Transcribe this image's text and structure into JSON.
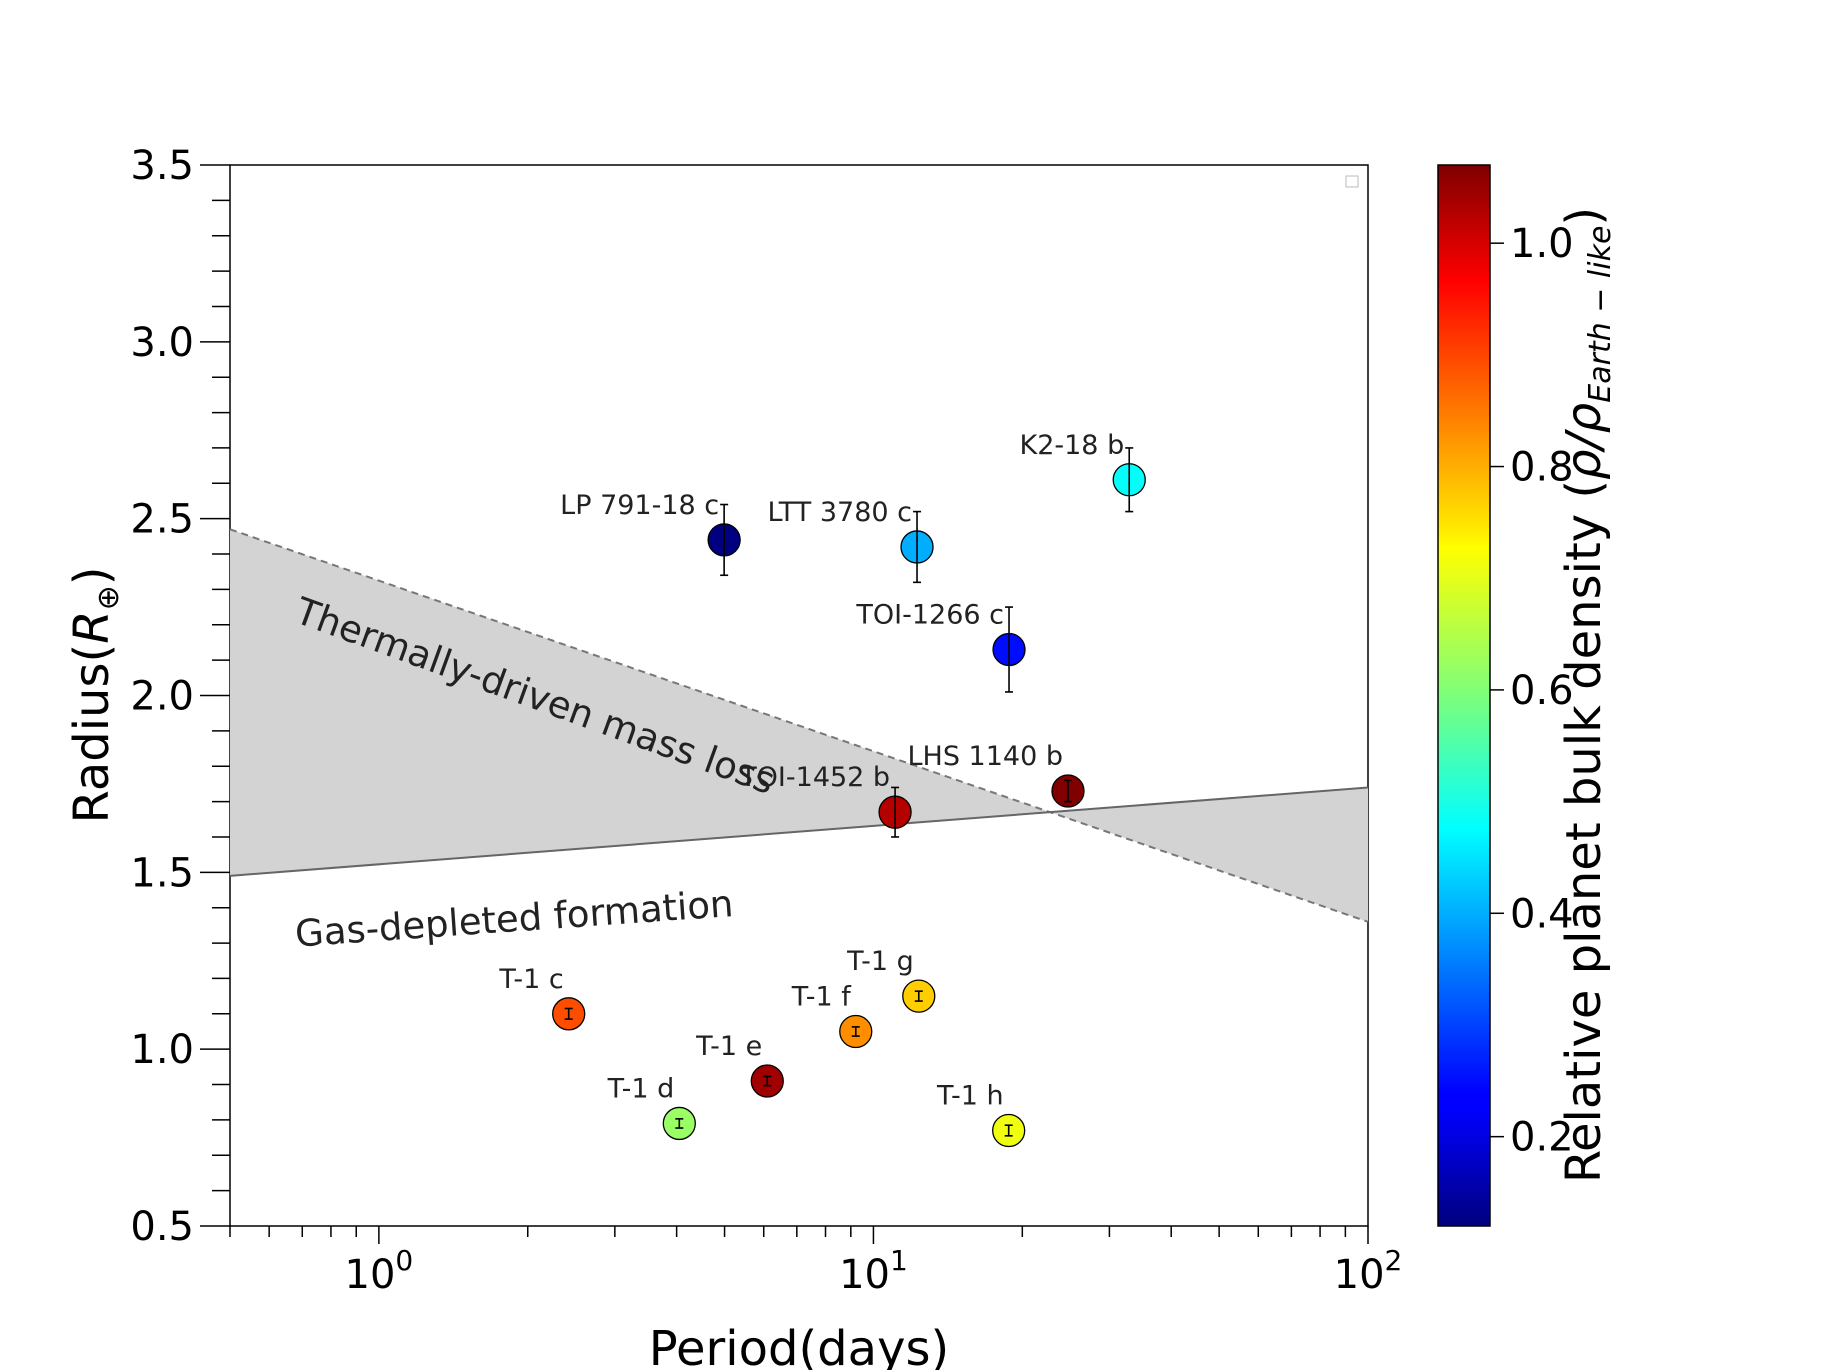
{
  "chart_data": {
    "type": "scatter",
    "xlabel": "Period(days)",
    "ylabel_prefix": "Radius(",
    "ylabel_symbol": "R",
    "ylabel_sub": "⊕",
    "ylabel_suffix": ")",
    "x_scale": "log",
    "xlim": [
      0.5,
      100
    ],
    "ylim": [
      0.5,
      3.5
    ],
    "x_ticks": [
      {
        "value": 1,
        "base": "10",
        "exp": "0"
      },
      {
        "value": 10,
        "base": "10",
        "exp": "1"
      },
      {
        "value": 100,
        "base": "10",
        "exp": "2"
      }
    ],
    "y_ticks": [
      {
        "value": 0.5,
        "label": "0.5"
      },
      {
        "value": 1.0,
        "label": "1.0"
      },
      {
        "value": 1.5,
        "label": "1.5"
      },
      {
        "value": 2.0,
        "label": "2.0"
      },
      {
        "value": 2.5,
        "label": "2.5"
      },
      {
        "value": 3.0,
        "label": "3.0"
      },
      {
        "value": 3.5,
        "label": "3.5"
      }
    ],
    "grid": false,
    "points": [
      {
        "label": "LP 791-18 c",
        "period": 4.99,
        "radius": 2.44,
        "err": 0.1,
        "density": 0.12
      },
      {
        "label": "LTT 3780 c",
        "period": 12.25,
        "radius": 2.42,
        "err": 0.1,
        "density": 0.4
      },
      {
        "label": "K2-18 b",
        "period": 32.9,
        "radius": 2.61,
        "err": 0.09,
        "density": 0.48
      },
      {
        "label": "TOI-1266 c",
        "period": 18.8,
        "radius": 2.13,
        "err": 0.12,
        "density": 0.25
      },
      {
        "label": "TOI-1452 b",
        "period": 11.06,
        "radius": 1.67,
        "err": 0.07,
        "density": 1.02
      },
      {
        "label": "LHS 1140 b",
        "period": 24.74,
        "radius": 1.73,
        "err": 0.03,
        "density": 1.08
      },
      {
        "label": "T-1 c",
        "period": 2.42,
        "radius": 1.1,
        "err": 0.015,
        "density": 0.88
      },
      {
        "label": "T-1 d",
        "period": 4.05,
        "radius": 0.79,
        "err": 0.013,
        "density": 0.62
      },
      {
        "label": "T-1 e",
        "period": 6.1,
        "radius": 0.91,
        "err": 0.013,
        "density": 1.04
      },
      {
        "label": "T-1 f",
        "period": 9.21,
        "radius": 1.05,
        "err": 0.013,
        "density": 0.82
      },
      {
        "label": "T-1 g",
        "period": 12.35,
        "radius": 1.15,
        "err": 0.014,
        "density": 0.76
      },
      {
        "label": "T-1 h",
        "period": 18.77,
        "radius": 0.77,
        "err": 0.015,
        "density": 0.7
      }
    ],
    "lines": [
      {
        "name": "thermal",
        "style": "dashed",
        "x": [
          0.5,
          100
        ],
        "y": [
          2.47,
          1.36
        ]
      },
      {
        "name": "gas",
        "style": "solid",
        "x": [
          0.5,
          100
        ],
        "y": [
          1.49,
          1.74
        ]
      }
    ],
    "region_labels": [
      {
        "text": "Thermally-driven mass loss",
        "x": 0.67,
        "y": 2.21,
        "angle": 20
      },
      {
        "text": "Gas-depleted formation",
        "x": 0.68,
        "y": 1.29,
        "angle": -4
      }
    ],
    "colorbar": {
      "label_prefix": "Relative planet bulk density (",
      "label_symbol": "ρ/ρ",
      "label_sub": "Earth − like",
      "label_suffix": ")",
      "min": 0.12,
      "max": 1.07,
      "colormap": "jet",
      "ticks": [
        {
          "value": 0.2,
          "label": "0.2"
        },
        {
          "value": 0.4,
          "label": "0.4"
        },
        {
          "value": 0.6,
          "label": "0.6"
        },
        {
          "value": 0.8,
          "label": "0.8"
        },
        {
          "value": 1.0,
          "label": "1.0"
        }
      ]
    }
  }
}
